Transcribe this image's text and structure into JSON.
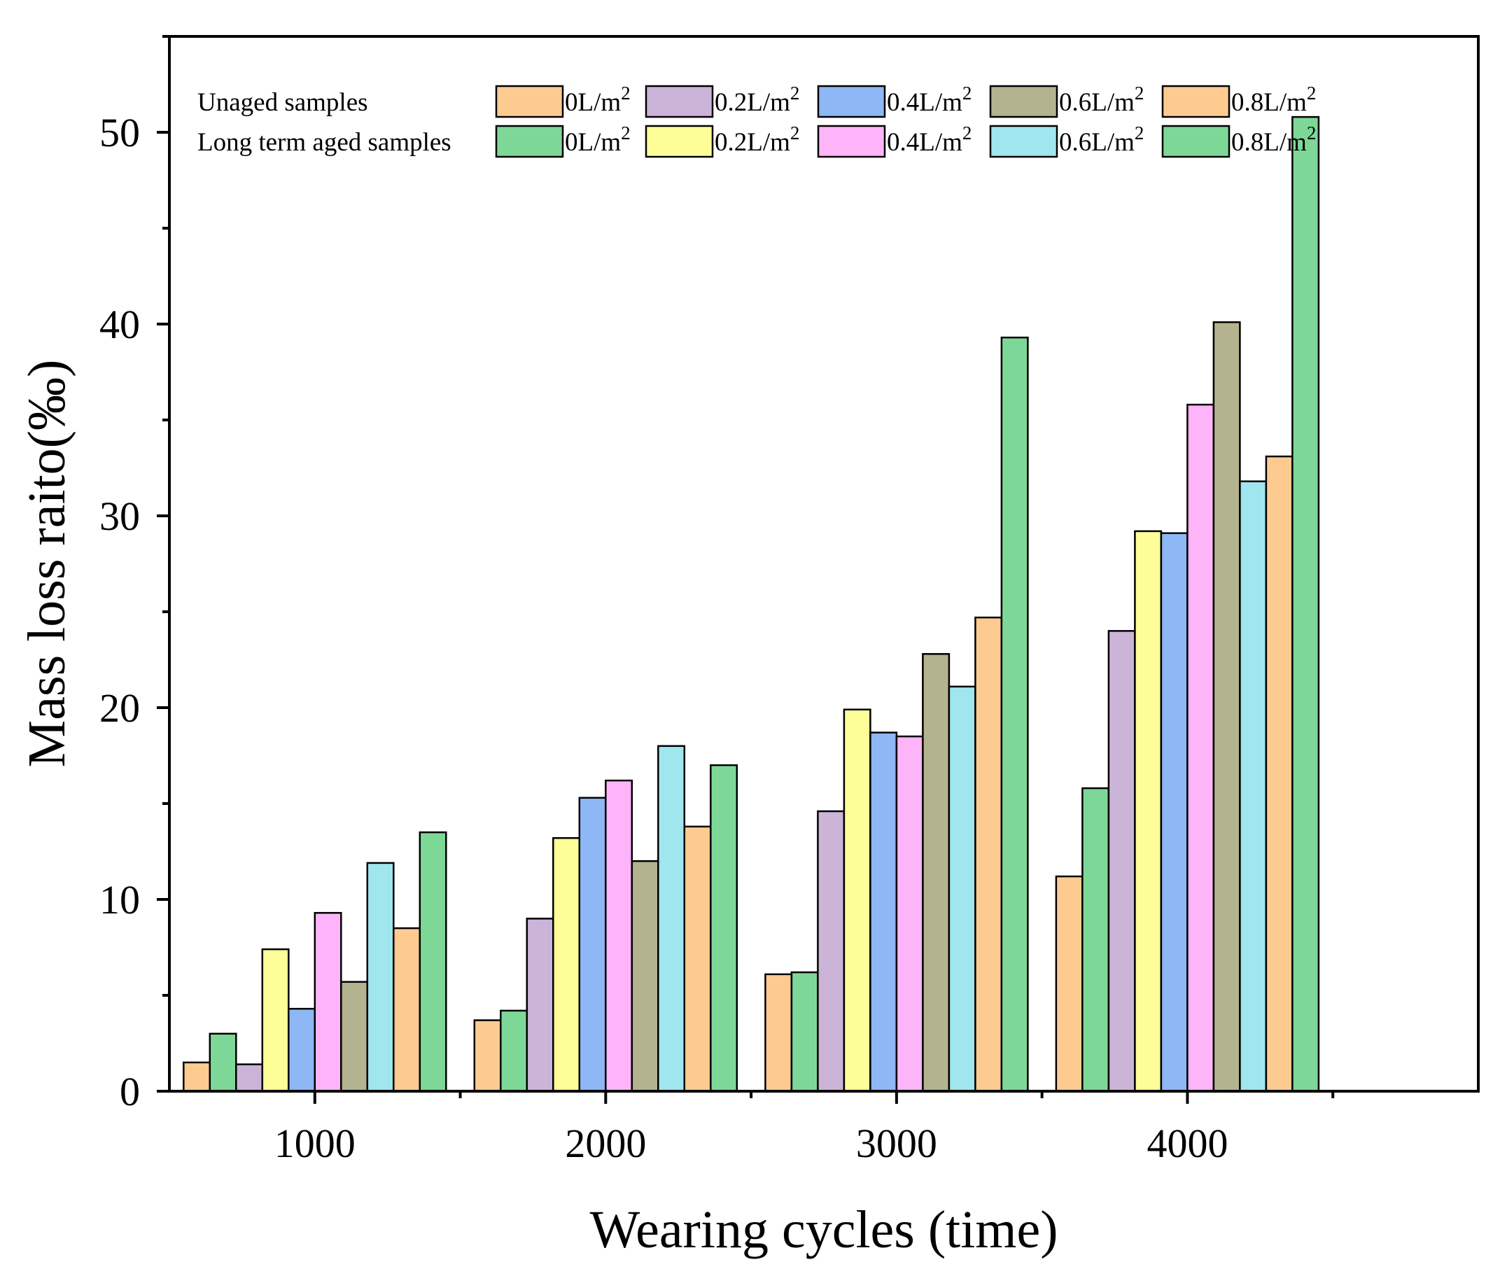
{
  "chart_data": {
    "type": "bar",
    "title": "",
    "xlabel": "Wearing cycles (time)",
    "ylabel": "Mass loss raito(‰)",
    "ylim": [
      0,
      55
    ],
    "yticks": [
      0,
      10,
      20,
      30,
      40,
      50
    ],
    "categories": [
      "1000",
      "2000",
      "3000",
      "4000"
    ],
    "legend": {
      "placement": "top",
      "group_labels": [
        "Unaged samples",
        "Long term aged samples"
      ],
      "entry_label_base": [
        "0L/m",
        "0.2L/m",
        "0.4L/m",
        "0.6L/m",
        "0.8L/m"
      ],
      "entry_label_sup": "2"
    },
    "series": [
      {
        "name": "Unaged samples 0L/m2",
        "group": 0,
        "level": 0,
        "color": "#FDCB90",
        "values": [
          1.5,
          3.7,
          6.1,
          11.2
        ]
      },
      {
        "name": "Long term aged samples 0L/m2",
        "group": 1,
        "level": 0,
        "color": "#7DD898",
        "values": [
          3.0,
          4.2,
          6.2,
          15.8
        ]
      },
      {
        "name": "Unaged samples 0.2L/m2",
        "group": 0,
        "level": 1,
        "color": "#CBB4D8",
        "values": [
          1.4,
          9.0,
          14.6,
          24.0
        ]
      },
      {
        "name": "Long term aged samples 0.2L/m2",
        "group": 1,
        "level": 1,
        "color": "#FEFE99",
        "values": [
          7.4,
          13.2,
          19.9,
          29.2
        ]
      },
      {
        "name": "Unaged samples 0.4L/m2",
        "group": 0,
        "level": 2,
        "color": "#8DB7F5",
        "values": [
          4.3,
          15.3,
          18.7,
          29.1
        ]
      },
      {
        "name": "Long term aged samples 0.4L/m2",
        "group": 1,
        "level": 2,
        "color": "#FDB4F8",
        "values": [
          9.3,
          16.2,
          18.5,
          35.8
        ]
      },
      {
        "name": "Unaged samples 0.6L/m2",
        "group": 0,
        "level": 3,
        "color": "#B3B38F",
        "values": [
          5.7,
          12.0,
          22.8,
          40.1
        ]
      },
      {
        "name": "Long term aged samples 0.6L/m2",
        "group": 1,
        "level": 3,
        "color": "#A0E6EE",
        "values": [
          11.9,
          18.0,
          21.1,
          31.8
        ]
      },
      {
        "name": "Unaged samples 0.8L/m2",
        "group": 0,
        "level": 4,
        "color": "#FDCB90",
        "values": [
          8.5,
          13.8,
          24.7,
          33.1
        ]
      },
      {
        "name": "Long term aged samples 0.8L/m2",
        "group": 1,
        "level": 4,
        "color": "#7DD898",
        "values": [
          13.5,
          17.0,
          39.3,
          50.8
        ]
      }
    ]
  }
}
